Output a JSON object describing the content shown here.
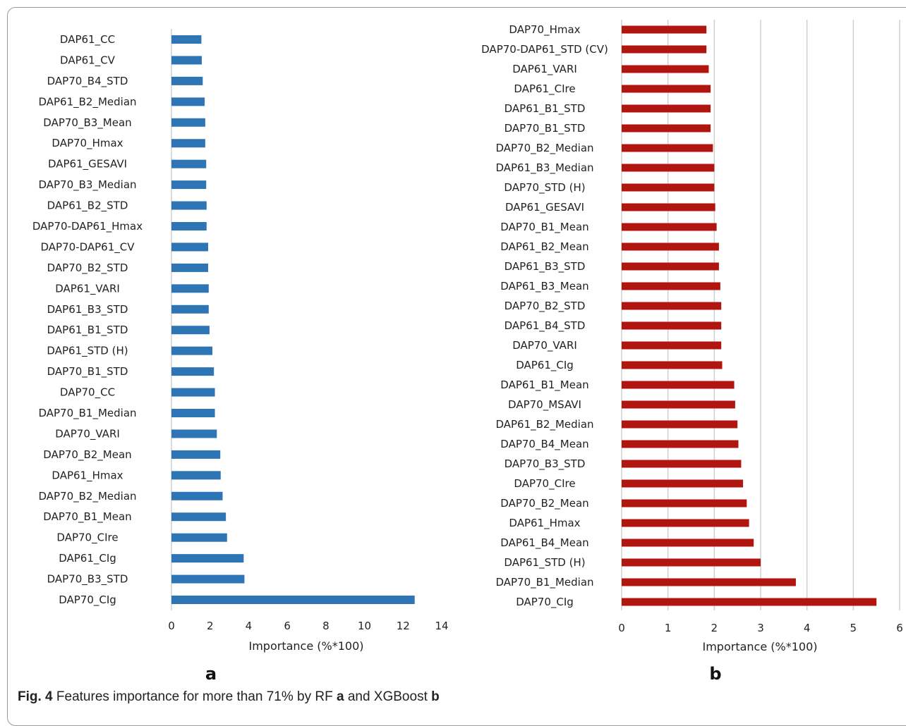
{
  "caption": {
    "label": "Fig. 4",
    "text_before": "Features importance for more than 71% by RF ",
    "panel_a": "a",
    "text_middle": " and XGBoost ",
    "panel_b": "b"
  },
  "chart_data": [
    {
      "type": "bar",
      "orientation": "horizontal",
      "panel_label": "a",
      "title": "",
      "xlabel": "Importance (%*100)",
      "ylabel": "",
      "xlim": [
        0,
        14
      ],
      "xticks": [
        "0",
        "2",
        "4",
        "6",
        "8",
        "10",
        "12",
        "14"
      ],
      "grid": false,
      "color": "#2e75b6",
      "categories": [
        "DAP61_CC",
        "DAP61_CV",
        "DAP70_B4_STD",
        "DAP61_B2_Median",
        "DAP70_B3_Mean",
        "DAP70_Hmax",
        "DAP61_GESAVI",
        "DAP70_B3_Median",
        "DAP61_B2_STD",
        "DAP70-DAP61_Hmax",
        "DAP70-DAP61_CV",
        "DAP70_B2_STD",
        "DAP61_VARI",
        "DAP61_B3_STD",
        "DAP61_B1_STD",
        "DAP61_STD (H)",
        "DAP70_B1_STD",
        "DAP70_CC",
        "DAP70_B1_Median",
        "DAP70_VARI",
        "DAP70_B2_Mean",
        "DAP61_Hmax",
        "DAP70_B2_Median",
        "DAP70_B1_Mean",
        "DAP70_CIre",
        "DAP61_CIg",
        "DAP70_B3_STD",
        "DAP70_CIg"
      ],
      "values": [
        1.55,
        1.57,
        1.62,
        1.72,
        1.75,
        1.75,
        1.8,
        1.8,
        1.82,
        1.82,
        1.9,
        1.9,
        1.93,
        1.93,
        1.97,
        2.12,
        2.2,
        2.25,
        2.25,
        2.35,
        2.53,
        2.55,
        2.65,
        2.82,
        2.88,
        3.74,
        3.78,
        12.6
      ]
    },
    {
      "type": "bar",
      "orientation": "horizontal",
      "panel_label": "b",
      "title": "",
      "xlabel": "Importance (%*100)",
      "ylabel": "",
      "xlim": [
        0,
        6
      ],
      "xticks": [
        "0",
        "1",
        "2",
        "3",
        "4",
        "5",
        "6"
      ],
      "grid": true,
      "color": "#b0150f",
      "categories": [
        "DAP70_Hmax",
        "DAP70-DAP61_STD (CV)",
        "DAP61_VARI",
        "DAP61_CIre",
        "DAP61_B1_STD",
        "DAP70_B1_STD",
        "DAP70_B2_Median",
        "DAP61_B3_Median",
        "DAP70_STD (H)",
        "DAP61_GESAVI",
        "DAP70_B1_Mean",
        "DAP61_B2_Mean",
        "DAP61_B3_STD",
        "DAP61_B3_Mean",
        "DAP70_B2_STD",
        "DAP61_B4_STD",
        "DAP70_VARI",
        "DAP61_CIg",
        "DAP61_B1_Mean",
        "DAP70_MSAVI",
        "DAP61_B2_Median",
        "DAP70_B4_Mean",
        "DAP70_B3_STD",
        "DAP70_CIre",
        "DAP70_B2_Mean",
        "DAP61_Hmax",
        "DAP61_B4_Mean",
        "DAP61_STD (H)",
        "DAP70_B1_Median",
        "DAP70_CIg"
      ],
      "values": [
        1.83,
        1.83,
        1.88,
        1.92,
        1.92,
        1.92,
        1.97,
        2.0,
        2.0,
        2.02,
        2.05,
        2.1,
        2.1,
        2.13,
        2.15,
        2.15,
        2.15,
        2.17,
        2.43,
        2.45,
        2.5,
        2.52,
        2.58,
        2.62,
        2.7,
        2.75,
        2.85,
        3.0,
        3.76,
        5.5
      ]
    }
  ]
}
